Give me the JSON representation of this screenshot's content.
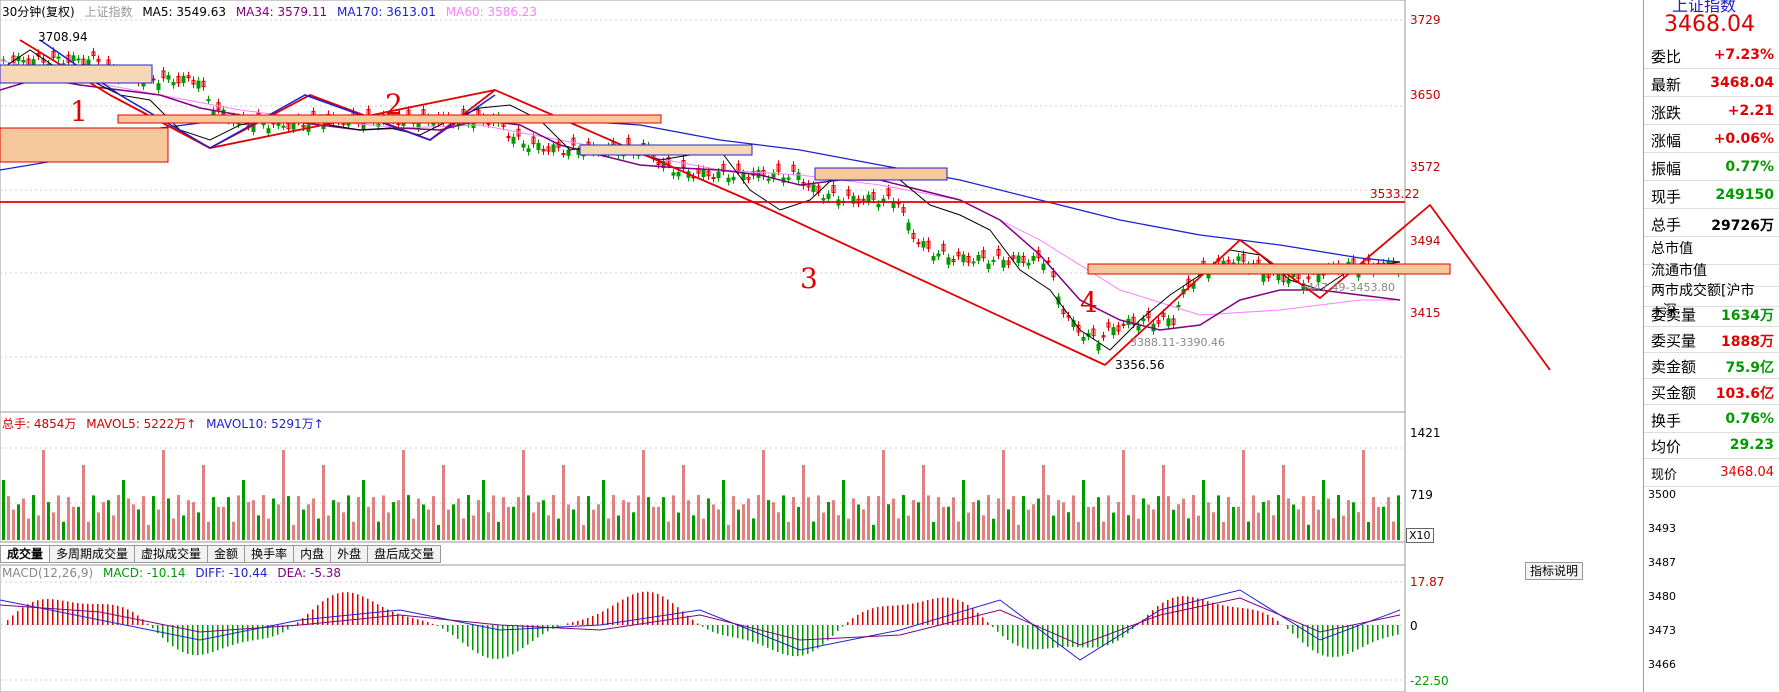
{
  "legend_main": {
    "period": "30分钟(复权)",
    "index": "上证指数",
    "ma5": "MA5: 3549.63",
    "ma34": "MA34: 3579.11",
    "ma170": "MA170: 3613.01",
    "ma60": "MA60: 3586.23"
  },
  "price_axis": [
    "3729",
    "3650",
    "3572",
    "3533.22",
    "3494",
    "3415"
  ],
  "price_marks": {
    "high": "3708.94",
    "low": "3356.56",
    "range1": "3388.11-3390.46",
    "range2": "3447.49-3453.80"
  },
  "annotations": [
    "1",
    "2",
    "3",
    "4"
  ],
  "legend_vol": {
    "total": "总手: 4854万",
    "mavol5": "MAVOL5: 5222万↑",
    "mavol10": "MAVOL10: 5291万↑"
  },
  "vol_axis": [
    "1421",
    "719",
    "X10"
  ],
  "tabs": [
    "成交量",
    "多周期成交量",
    "虚拟成交量",
    "金额",
    "换手率",
    "内盘",
    "外盘",
    "盘后成交量"
  ],
  "legend_macd": {
    "params": "MACD(12,26,9)",
    "macd": "MACD: -10.14",
    "diff": "DIFF: -10.44",
    "dea": "DEA: -5.38"
  },
  "macd_axis": [
    "17.87",
    "0",
    "-22.50"
  ],
  "macd_button": "指标说明",
  "right_panel": {
    "title_partial": "上证指数",
    "price": "3468.04",
    "rows": [
      {
        "k": "委比",
        "v": "+7.23%",
        "c": "red"
      },
      {
        "k": "最新",
        "v": "3468.04",
        "c": "red"
      },
      {
        "k": "涨跌",
        "v": "+2.21",
        "c": "red"
      },
      {
        "k": "涨幅",
        "v": "+0.06%",
        "c": "red"
      },
      {
        "k": "振幅",
        "v": "0.77%",
        "c": "green"
      },
      {
        "k": "现手",
        "v": "249150",
        "c": "green"
      },
      {
        "k": "总手",
        "v": "29726万",
        "c": "black"
      },
      {
        "k": "总市值",
        "v": "",
        "c": "black"
      },
      {
        "k": "流通市值",
        "v": "",
        "c": "black"
      },
      {
        "k": "两市成交额[沪市+深",
        "v": "",
        "c": "black"
      },
      {
        "k": "委卖量",
        "v": "1634万",
        "c": "green"
      },
      {
        "k": "委买量",
        "v": "1888万",
        "c": "red"
      },
      {
        "k": "卖金额",
        "v": "75.9亿",
        "c": "green"
      },
      {
        "k": "买金额",
        "v": "103.6亿",
        "c": "red"
      },
      {
        "k": "换手",
        "v": "0.76%",
        "c": "green"
      },
      {
        "k": "均价",
        "v": "29.23",
        "c": "green"
      }
    ],
    "now_price_label": "现价",
    "now_price_value": "3468.04",
    "mini_ticks": [
      "3500",
      "3493",
      "3487",
      "3480",
      "3473",
      "3466"
    ]
  },
  "colors": {
    "up": "#e00000",
    "down": "#009900",
    "ma34": "#800080",
    "ma170": "#2020d0",
    "ma60": "#ff80ff",
    "annot": "#e00000"
  }
}
